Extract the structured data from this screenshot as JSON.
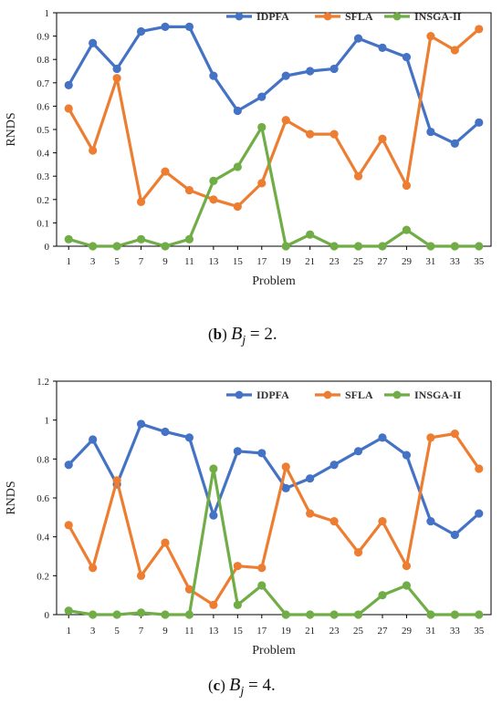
{
  "chart_data": [
    {
      "type": "line",
      "caption": {
        "letter": "b",
        "symbol": "B",
        "subscript": "j",
        "rest": " = 2",
        "end": "."
      },
      "categories": [
        "1",
        "3",
        "5",
        "7",
        "9",
        "11",
        "13",
        "15",
        "17",
        "19",
        "21",
        "23",
        "25",
        "27",
        "29",
        "31",
        "33",
        "35"
      ],
      "xlabel": "Problem",
      "ylabel": "RNDS",
      "ylim": [
        0,
        1
      ],
      "yticks": [
        "0",
        "0.1",
        "0.2",
        "0.3",
        "0.4",
        "0.5",
        "0.6",
        "0.7",
        "0.8",
        "0.9",
        "1"
      ],
      "legend_position": "top-right",
      "series": [
        {
          "name": "IDPFA",
          "color": "#4472C4",
          "values": [
            0.69,
            0.87,
            0.76,
            0.92,
            0.94,
            0.94,
            0.73,
            0.58,
            0.64,
            0.73,
            0.75,
            0.76,
            0.89,
            0.85,
            0.81,
            0.49,
            0.44,
            0.53
          ]
        },
        {
          "name": "SFLA",
          "color": "#ED7D31",
          "values": [
            0.59,
            0.41,
            0.72,
            0.19,
            0.32,
            0.24,
            0.2,
            0.17,
            0.27,
            0.54,
            0.48,
            0.48,
            0.3,
            0.46,
            0.26,
            0.9,
            0.84,
            0.93
          ]
        },
        {
          "name": "INSGA-II",
          "color": "#70AD47",
          "values": [
            0.03,
            0,
            0,
            0.03,
            0,
            0.03,
            0.28,
            0.34,
            0.51,
            0,
            0.05,
            0,
            0,
            0,
            0.07,
            0,
            0,
            0
          ]
        }
      ]
    },
    {
      "type": "line",
      "caption": {
        "letter": "c",
        "symbol": "B",
        "subscript": "j",
        "rest": " = 4",
        "end": "."
      },
      "categories": [
        "1",
        "3",
        "5",
        "7",
        "9",
        "11",
        "13",
        "15",
        "17",
        "19",
        "21",
        "23",
        "25",
        "27",
        "29",
        "31",
        "33",
        "35"
      ],
      "xlabel": "Problem",
      "ylabel": "RNDS",
      "ylim": [
        0,
        1.2
      ],
      "yticks": [
        "0",
        "0.2",
        "0.4",
        "0.6",
        "0.8",
        "1",
        "1.2"
      ],
      "legend_position": "top-right",
      "series": [
        {
          "name": "IDPFA",
          "color": "#4472C4",
          "values": [
            0.77,
            0.9,
            0.67,
            0.98,
            0.94,
            0.91,
            0.51,
            0.84,
            0.83,
            0.65,
            0.7,
            0.77,
            0.84,
            0.91,
            0.82,
            0.48,
            0.41,
            0.52
          ]
        },
        {
          "name": "SFLA",
          "color": "#ED7D31",
          "values": [
            0.46,
            0.24,
            0.69,
            0.2,
            0.37,
            0.13,
            0.05,
            0.25,
            0.24,
            0.76,
            0.52,
            0.48,
            0.32,
            0.48,
            0.25,
            0.91,
            0.93,
            0.75
          ]
        },
        {
          "name": "INSGA-II",
          "color": "#70AD47",
          "values": [
            0.02,
            0,
            0,
            0.01,
            0,
            0,
            0.75,
            0.05,
            0.15,
            0,
            0,
            0,
            0,
            0.1,
            0.15,
            0,
            0,
            0
          ]
        }
      ]
    }
  ]
}
